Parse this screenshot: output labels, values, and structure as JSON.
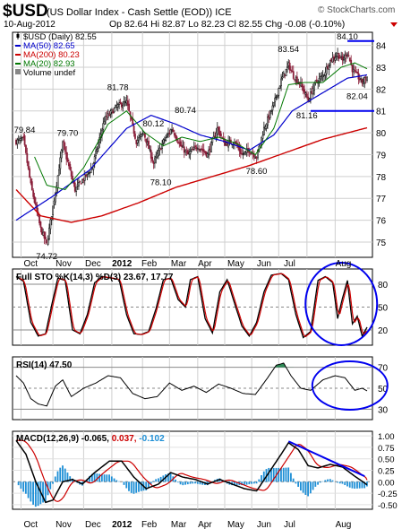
{
  "header": {
    "symbol": "$USD",
    "name": "(US Dollar Index - Cash Settle (EOD)) ICE",
    "watermark": "© StockCharts.com",
    "date": "10-Aug-2012",
    "quote": "Op 82.64 Hi 82.87 Lo 82.23 Cl 82.55 Chg -0.08 (-0.10%)",
    "down_arrow_color": "#cc0000"
  },
  "legend": [
    {
      "text": "$USD (Daily) 82.55",
      "color": "#000000",
      "icon": "candle-icon"
    },
    {
      "text": "MA(50) 82.65",
      "color": "#0000cc",
      "icon": "line-swatch"
    },
    {
      "text": "MA(200) 80.23",
      "color": "#cc0000",
      "icon": "line-swatch"
    },
    {
      "text": "MA(20) 82.93",
      "color": "#007700",
      "icon": "line-swatch"
    },
    {
      "text": "Volume undef",
      "color": "#000000",
      "icon": "grid-icon"
    }
  ],
  "x_labels": [
    "Oct",
    "Nov",
    "Dec",
    "2012",
    "Feb",
    "Mar",
    "Apr",
    "May",
    "Jun",
    "Jul",
    "Aug"
  ],
  "panels": {
    "sto": {
      "title": "Full STO %K(14,3) %D(3) 23.67, 17.77",
      "ticks": [
        "80",
        "50",
        "20"
      ]
    },
    "rsi": {
      "title": "RSI(14) 47.50",
      "ticks": [
        "70",
        "50",
        "30"
      ]
    },
    "macd": {
      "title_prefix": "MACD(12,26,9) -0.065,",
      "title_signal": "0.037,",
      "title_hist": "-0.102",
      "ticks": [
        "1.00",
        "0.75",
        "0.50",
        "0.25",
        "0.00",
        "-0.25",
        "-0.50"
      ]
    }
  },
  "chart_data": [
    {
      "type": "candlestick",
      "title": "$USD (Daily) 82.55",
      "ylim": [
        74.3,
        84.6
      ],
      "yticks": [
        75,
        76,
        77,
        78,
        79,
        80,
        81,
        82,
        83,
        84
      ],
      "price_keypoints": [
        {
          "t": 0,
          "v": 79.6
        },
        {
          "t": 6,
          "v": 79.7
        },
        {
          "t": 12,
          "v": 77.6
        },
        {
          "t": 20,
          "v": 75.6
        },
        {
          "t": 25,
          "v": 74.9
        },
        {
          "t": 32,
          "v": 77.3
        },
        {
          "t": 38,
          "v": 79.5
        },
        {
          "t": 48,
          "v": 77.4
        },
        {
          "t": 62,
          "v": 78.4
        },
        {
          "t": 72,
          "v": 80.6
        },
        {
          "t": 82,
          "v": 81.2
        },
        {
          "t": 90,
          "v": 81.4
        },
        {
          "t": 98,
          "v": 79.6
        },
        {
          "t": 104,
          "v": 80.0
        },
        {
          "t": 112,
          "v": 78.6
        },
        {
          "t": 120,
          "v": 79.6
        },
        {
          "t": 127,
          "v": 80.2
        },
        {
          "t": 134,
          "v": 79.4
        },
        {
          "t": 140,
          "v": 79.0
        },
        {
          "t": 148,
          "v": 79.4
        },
        {
          "t": 156,
          "v": 79.0
        },
        {
          "t": 164,
          "v": 80.2
        },
        {
          "t": 170,
          "v": 79.5
        },
        {
          "t": 178,
          "v": 79.6
        },
        {
          "t": 184,
          "v": 79.0
        },
        {
          "t": 190,
          "v": 79.2
        },
        {
          "t": 196,
          "v": 78.9
        },
        {
          "t": 202,
          "v": 80.2
        },
        {
          "t": 210,
          "v": 81.3
        },
        {
          "t": 216,
          "v": 82.4
        },
        {
          "t": 222,
          "v": 83.1
        },
        {
          "t": 226,
          "v": 82.6
        },
        {
          "t": 232,
          "v": 82.2
        },
        {
          "t": 238,
          "v": 81.5
        },
        {
          "t": 244,
          "v": 82.3
        },
        {
          "t": 250,
          "v": 82.6
        },
        {
          "t": 256,
          "v": 83.3
        },
        {
          "t": 262,
          "v": 83.6
        },
        {
          "t": 266,
          "v": 83.3
        },
        {
          "t": 270,
          "v": 83.7
        },
        {
          "t": 274,
          "v": 82.9
        },
        {
          "t": 278,
          "v": 82.6
        },
        {
          "t": 282,
          "v": 82.3
        },
        {
          "t": 286,
          "v": 82.55
        }
      ],
      "ma50_keypoints": [
        {
          "t": 0,
          "v": 76.0
        },
        {
          "t": 30,
          "v": 77.1
        },
        {
          "t": 60,
          "v": 78.3
        },
        {
          "t": 90,
          "v": 80.2
        },
        {
          "t": 110,
          "v": 80.8
        },
        {
          "t": 130,
          "v": 80.4
        },
        {
          "t": 150,
          "v": 79.9
        },
        {
          "t": 170,
          "v": 79.6
        },
        {
          "t": 190,
          "v": 79.2
        },
        {
          "t": 210,
          "v": 79.9
        },
        {
          "t": 225,
          "v": 81.0
        },
        {
          "t": 240,
          "v": 81.5
        },
        {
          "t": 255,
          "v": 82.0
        },
        {
          "t": 270,
          "v": 82.5
        },
        {
          "t": 286,
          "v": 82.65
        }
      ],
      "ma20_keypoints": [
        {
          "t": 15,
          "v": 78.9
        },
        {
          "t": 25,
          "v": 77.6
        },
        {
          "t": 40,
          "v": 77.4
        },
        {
          "t": 55,
          "v": 78.4
        },
        {
          "t": 75,
          "v": 80.4
        },
        {
          "t": 90,
          "v": 81.0
        },
        {
          "t": 105,
          "v": 80.0
        },
        {
          "t": 120,
          "v": 79.4
        },
        {
          "t": 135,
          "v": 79.8
        },
        {
          "t": 150,
          "v": 79.6
        },
        {
          "t": 165,
          "v": 79.8
        },
        {
          "t": 180,
          "v": 79.5
        },
        {
          "t": 195,
          "v": 79.0
        },
        {
          "t": 210,
          "v": 80.2
        },
        {
          "t": 222,
          "v": 82.2
        },
        {
          "t": 235,
          "v": 82.3
        },
        {
          "t": 250,
          "v": 82.3
        },
        {
          "t": 265,
          "v": 83.0
        },
        {
          "t": 276,
          "v": 83.2
        },
        {
          "t": 286,
          "v": 82.93
        }
      ],
      "ma200_keypoints": [
        {
          "t": 0,
          "v": 77.4
        },
        {
          "t": 20,
          "v": 76.2
        },
        {
          "t": 45,
          "v": 75.9
        },
        {
          "t": 70,
          "v": 76.2
        },
        {
          "t": 100,
          "v": 76.8
        },
        {
          "t": 130,
          "v": 77.5
        },
        {
          "t": 160,
          "v": 78.0
        },
        {
          "t": 190,
          "v": 78.5
        },
        {
          "t": 220,
          "v": 79.1
        },
        {
          "t": 250,
          "v": 79.7
        },
        {
          "t": 286,
          "v": 80.23
        }
      ],
      "annotations": [
        {
          "label": "79.84",
          "t": 7,
          "v": 79.84
        },
        {
          "label": "74.72",
          "t": 25,
          "v": 74.72
        },
        {
          "label": "79.70",
          "t": 42,
          "v": 79.7
        },
        {
          "label": "81.78",
          "t": 83,
          "v": 81.78
        },
        {
          "label": "80.12",
          "t": 112,
          "v": 80.12
        },
        {
          "label": "78.10",
          "t": 118,
          "v": 78.1
        },
        {
          "label": "80.74",
          "t": 138,
          "v": 80.74
        },
        {
          "label": "78.60",
          "t": 196,
          "v": 78.6
        },
        {
          "label": "83.54",
          "t": 222,
          "v": 83.54
        },
        {
          "label": "81.16",
          "t": 237,
          "v": 81.16
        },
        {
          "label": "84.10",
          "t": 270,
          "v": 84.1
        },
        {
          "label": "82.04",
          "t": 278,
          "v": 82.04
        }
      ],
      "horizontal_lines": [
        84.2,
        81.0
      ],
      "highlight_circle": false
    },
    {
      "type": "line",
      "title": "Full STO %K(14,3) %D(3) 23.67, 17.77",
      "ylim": [
        0,
        100
      ],
      "yticks": [
        20,
        50,
        80
      ],
      "k_keypoints": [
        {
          "t": 0,
          "v": 90
        },
        {
          "t": 6,
          "v": 84
        },
        {
          "t": 12,
          "v": 30
        },
        {
          "t": 18,
          "v": 12
        },
        {
          "t": 24,
          "v": 15
        },
        {
          "t": 30,
          "v": 60
        },
        {
          "t": 34,
          "v": 88
        },
        {
          "t": 40,
          "v": 85
        },
        {
          "t": 46,
          "v": 20
        },
        {
          "t": 52,
          "v": 15
        },
        {
          "t": 58,
          "v": 40
        },
        {
          "t": 64,
          "v": 82
        },
        {
          "t": 70,
          "v": 90
        },
        {
          "t": 78,
          "v": 88
        },
        {
          "t": 84,
          "v": 86
        },
        {
          "t": 90,
          "v": 40
        },
        {
          "t": 96,
          "v": 15
        },
        {
          "t": 102,
          "v": 14
        },
        {
          "t": 108,
          "v": 18
        },
        {
          "t": 114,
          "v": 48
        },
        {
          "t": 120,
          "v": 86
        },
        {
          "t": 126,
          "v": 88
        },
        {
          "t": 132,
          "v": 60
        },
        {
          "t": 138,
          "v": 50
        },
        {
          "t": 142,
          "v": 86
        },
        {
          "t": 148,
          "v": 90
        },
        {
          "t": 154,
          "v": 35
        },
        {
          "t": 160,
          "v": 16
        },
        {
          "t": 166,
          "v": 70
        },
        {
          "t": 172,
          "v": 86
        },
        {
          "t": 178,
          "v": 55
        },
        {
          "t": 184,
          "v": 25
        },
        {
          "t": 190,
          "v": 12
        },
        {
          "t": 196,
          "v": 30
        },
        {
          "t": 202,
          "v": 70
        },
        {
          "t": 208,
          "v": 92
        },
        {
          "t": 216,
          "v": 94
        },
        {
          "t": 222,
          "v": 86
        },
        {
          "t": 228,
          "v": 40
        },
        {
          "t": 234,
          "v": 10
        },
        {
          "t": 240,
          "v": 18
        },
        {
          "t": 246,
          "v": 85
        },
        {
          "t": 252,
          "v": 90
        },
        {
          "t": 258,
          "v": 82
        },
        {
          "t": 262,
          "v": 35
        },
        {
          "t": 266,
          "v": 62
        },
        {
          "t": 270,
          "v": 85
        },
        {
          "t": 274,
          "v": 28
        },
        {
          "t": 278,
          "v": 38
        },
        {
          "t": 282,
          "v": 12
        },
        {
          "t": 286,
          "v": 23.67
        }
      ],
      "d_lag": 3,
      "d_final": 17.77,
      "highlight_circle": true
    },
    {
      "type": "line",
      "title": "RSI(14) 47.50",
      "ylim": [
        20,
        80
      ],
      "yticks": [
        30,
        50,
        70
      ],
      "rsi_keypoints": [
        {
          "t": 0,
          "v": 62
        },
        {
          "t": 6,
          "v": 55
        },
        {
          "t": 12,
          "v": 40
        },
        {
          "t": 18,
          "v": 35
        },
        {
          "t": 25,
          "v": 33
        },
        {
          "t": 32,
          "v": 52
        },
        {
          "t": 38,
          "v": 58
        },
        {
          "t": 45,
          "v": 42
        },
        {
          "t": 55,
          "v": 50
        },
        {
          "t": 65,
          "v": 55
        },
        {
          "t": 75,
          "v": 62
        },
        {
          "t": 85,
          "v": 60
        },
        {
          "t": 95,
          "v": 45
        },
        {
          "t": 105,
          "v": 40
        },
        {
          "t": 115,
          "v": 42
        },
        {
          "t": 125,
          "v": 55
        },
        {
          "t": 135,
          "v": 48
        },
        {
          "t": 145,
          "v": 52
        },
        {
          "t": 155,
          "v": 46
        },
        {
          "t": 165,
          "v": 54
        },
        {
          "t": 175,
          "v": 50
        },
        {
          "t": 185,
          "v": 45
        },
        {
          "t": 195,
          "v": 44
        },
        {
          "t": 205,
          "v": 60
        },
        {
          "t": 212,
          "v": 72
        },
        {
          "t": 218,
          "v": 74
        },
        {
          "t": 224,
          "v": 62
        },
        {
          "t": 232,
          "v": 50
        },
        {
          "t": 240,
          "v": 48
        },
        {
          "t": 250,
          "v": 58
        },
        {
          "t": 260,
          "v": 62
        },
        {
          "t": 268,
          "v": 60
        },
        {
          "t": 276,
          "v": 48
        },
        {
          "t": 282,
          "v": 50
        },
        {
          "t": 286,
          "v": 47.5
        }
      ],
      "highlight_circle": true
    },
    {
      "type": "line",
      "title": "MACD(12,26,9) -0.065, 0.037, -0.102",
      "ylim": [
        -0.6,
        1.1
      ],
      "yticks": [
        -0.5,
        -0.25,
        0,
        0.25,
        0.5,
        0.75,
        1.0
      ],
      "macd_keypoints": [
        {
          "t": 0,
          "v": 0.9
        },
        {
          "t": 8,
          "v": 0.6
        },
        {
          "t": 16,
          "v": 0.0
        },
        {
          "t": 24,
          "v": -0.45
        },
        {
          "t": 30,
          "v": -0.4
        },
        {
          "t": 38,
          "v": 0.0
        },
        {
          "t": 46,
          "v": 0.05
        },
        {
          "t": 54,
          "v": -0.05
        },
        {
          "t": 64,
          "v": 0.2
        },
        {
          "t": 76,
          "v": 0.45
        },
        {
          "t": 86,
          "v": 0.45
        },
        {
          "t": 96,
          "v": 0.1
        },
        {
          "t": 106,
          "v": -0.15
        },
        {
          "t": 116,
          "v": -0.05
        },
        {
          "t": 126,
          "v": 0.2
        },
        {
          "t": 136,
          "v": 0.1
        },
        {
          "t": 146,
          "v": 0.05
        },
        {
          "t": 156,
          "v": -0.05
        },
        {
          "t": 166,
          "v": 0.05
        },
        {
          "t": 176,
          "v": -0.05
        },
        {
          "t": 186,
          "v": -0.15
        },
        {
          "t": 196,
          "v": -0.2
        },
        {
          "t": 206,
          "v": 0.2
        },
        {
          "t": 216,
          "v": 0.6
        },
        {
          "t": 222,
          "v": 0.85
        },
        {
          "t": 230,
          "v": 0.7
        },
        {
          "t": 238,
          "v": 0.35
        },
        {
          "t": 246,
          "v": 0.3
        },
        {
          "t": 256,
          "v": 0.38
        },
        {
          "t": 266,
          "v": 0.32
        },
        {
          "t": 276,
          "v": 0.12
        },
        {
          "t": 286,
          "v": -0.065
        }
      ],
      "signal_lag": 5,
      "signal_final": 0.037,
      "hist_final": -0.102,
      "trendline": [
        {
          "t": 222,
          "v": 0.88
        },
        {
          "t": 284,
          "v": 0.12
        }
      ]
    }
  ]
}
